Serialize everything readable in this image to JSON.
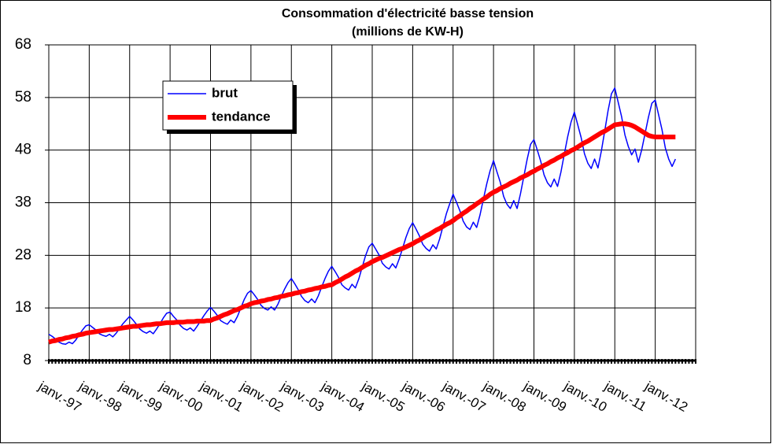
{
  "chart_data": {
    "type": "line",
    "title": "Consommation d'électricité basse tension",
    "subtitle": "(millions de KW-H)",
    "categories": [
      "janv.-97",
      null,
      null,
      null,
      null,
      null,
      null,
      null,
      null,
      null,
      null,
      null,
      "janv.-98",
      null,
      null,
      null,
      null,
      null,
      null,
      null,
      null,
      null,
      null,
      null,
      "janv.-99",
      null,
      null,
      null,
      null,
      null,
      null,
      null,
      null,
      null,
      null,
      null,
      "janv.-00",
      null,
      null,
      null,
      null,
      null,
      null,
      null,
      null,
      null,
      null,
      null,
      "janv.-01",
      null,
      null,
      null,
      null,
      null,
      null,
      null,
      null,
      null,
      null,
      null,
      "janv.-02",
      null,
      null,
      null,
      null,
      null,
      null,
      null,
      null,
      null,
      null,
      null,
      "janv.-03",
      null,
      null,
      null,
      null,
      null,
      null,
      null,
      null,
      null,
      null,
      null,
      "janv.-04",
      null,
      null,
      null,
      null,
      null,
      null,
      null,
      null,
      null,
      null,
      null,
      "janv.-05",
      null,
      null,
      null,
      null,
      null,
      null,
      null,
      null,
      null,
      null,
      null,
      "janv.-06",
      null,
      null,
      null,
      null,
      null,
      null,
      null,
      null,
      null,
      null,
      null,
      "janv.-07",
      null,
      null,
      null,
      null,
      null,
      null,
      null,
      null,
      null,
      null,
      null,
      "janv.-08",
      null,
      null,
      null,
      null,
      null,
      null,
      null,
      null,
      null,
      null,
      null,
      "janv.-09",
      null,
      null,
      null,
      null,
      null,
      null,
      null,
      null,
      null,
      null,
      null,
      "janv.-10",
      null,
      null,
      null,
      null,
      null,
      null,
      null,
      null,
      null,
      null,
      null,
      "janv.-11",
      null,
      null,
      null,
      null,
      null,
      null,
      null,
      null,
      null,
      null,
      null,
      "janv.-12",
      null,
      null,
      null,
      null,
      null,
      null,
      null,
      null,
      null,
      null,
      null
    ],
    "series": [
      {
        "name": "brut",
        "color": "#0000ff",
        "width": 1.5,
        "values": [
          13.0,
          12.6,
          12.1,
          11.5,
          11.2,
          11.1,
          11.5,
          11.2,
          11.9,
          12.9,
          13.8,
          14.6,
          14.8,
          14.3,
          13.8,
          13.1,
          12.8,
          12.6,
          13.0,
          12.5,
          13.2,
          14.1,
          15.0,
          15.7,
          16.4,
          15.7,
          14.9,
          14.0,
          13.5,
          13.2,
          13.6,
          13.1,
          14.0,
          15.0,
          16.1,
          17.0,
          17.2,
          16.4,
          15.7,
          14.7,
          14.1,
          13.8,
          14.2,
          13.6,
          14.5,
          15.5,
          16.5,
          17.4,
          18.1,
          17.4,
          16.6,
          15.6,
          15.2,
          14.9,
          15.7,
          15.2,
          16.4,
          18.0,
          19.6,
          20.8,
          21.3,
          20.5,
          19.6,
          18.5,
          17.9,
          17.6,
          18.2,
          17.6,
          18.7,
          20.2,
          21.6,
          22.8,
          23.6,
          22.6,
          21.5,
          20.2,
          19.4,
          19.0,
          19.7,
          19.0,
          20.3,
          22.0,
          23.6,
          25.0,
          25.9,
          24.9,
          23.8,
          22.4,
          21.8,
          21.4,
          22.5,
          21.8,
          23.5,
          25.7,
          27.9,
          29.6,
          30.3,
          29.2,
          28.1,
          26.5,
          25.8,
          25.4,
          26.4,
          25.6,
          27.3,
          29.3,
          31.4,
          33.1,
          34.2,
          33.0,
          31.7,
          30.1,
          29.3,
          28.8,
          30.0,
          29.2,
          31.1,
          33.5,
          35.9,
          37.8,
          39.6,
          38.1,
          36.5,
          34.5,
          33.4,
          32.9,
          34.3,
          33.3,
          35.7,
          38.7,
          41.6,
          44.1,
          46.0,
          43.9,
          41.9,
          39.2,
          37.7,
          36.9,
          38.4,
          36.9,
          39.7,
          43.0,
          46.3,
          49.1,
          50.0,
          48.0,
          45.9,
          43.3,
          41.8,
          41.0,
          42.5,
          41.1,
          43.8,
          47.2,
          50.5,
          53.3,
          55.2,
          52.8,
          50.4,
          47.3,
          45.5,
          44.5,
          46.3,
          44.6,
          47.8,
          51.6,
          55.5,
          58.7,
          59.8,
          57.1,
          54.4,
          50.9,
          48.7,
          47.1,
          48.2,
          45.7,
          48.1,
          51.2,
          54.3,
          56.9,
          57.5,
          54.7,
          51.9,
          48.4,
          46.3,
          44.9,
          46.3,
          null,
          null,
          null,
          null,
          null
        ]
      },
      {
        "name": "tendance",
        "color": "#ff0000",
        "width": 6,
        "values": [
          11.5,
          11.7,
          11.8,
          12.0,
          12.1,
          12.3,
          12.4,
          12.6,
          12.7,
          12.9,
          13.0,
          13.2,
          13.3,
          13.4,
          13.5,
          13.6,
          13.7,
          13.8,
          13.9,
          13.9,
          14.0,
          14.1,
          14.2,
          14.3,
          14.4,
          14.5,
          14.5,
          14.6,
          14.7,
          14.8,
          14.8,
          14.9,
          15.0,
          15.0,
          15.1,
          15.2,
          15.2,
          15.2,
          15.3,
          15.3,
          15.3,
          15.4,
          15.4,
          15.4,
          15.5,
          15.5,
          15.5,
          15.6,
          15.6,
          15.9,
          16.1,
          16.4,
          16.7,
          16.9,
          17.2,
          17.5,
          17.7,
          18.0,
          18.3,
          18.5,
          18.8,
          19.0,
          19.1,
          19.3,
          19.4,
          19.6,
          19.7,
          19.9,
          20.0,
          20.2,
          20.3,
          20.5,
          20.6,
          20.8,
          20.9,
          21.1,
          21.2,
          21.4,
          21.5,
          21.7,
          21.8,
          22.0,
          22.1,
          22.3,
          22.4,
          22.8,
          23.1,
          23.5,
          23.9,
          24.2,
          24.6,
          25.0,
          25.3,
          25.7,
          26.1,
          26.4,
          26.8,
          27.1,
          27.4,
          27.6,
          27.9,
          28.2,
          28.5,
          28.8,
          29.1,
          29.3,
          29.6,
          29.9,
          30.2,
          30.6,
          30.9,
          31.3,
          31.7,
          32.0,
          32.4,
          32.8,
          33.1,
          33.5,
          33.9,
          34.2,
          34.6,
          35.1,
          35.5,
          36.0,
          36.4,
          36.9,
          37.3,
          37.8,
          38.2,
          38.7,
          39.1,
          39.6,
          40.0,
          40.3,
          40.7,
          41.0,
          41.3,
          41.7,
          42.0,
          42.3,
          42.7,
          43.0,
          43.3,
          43.7,
          44.0,
          44.4,
          44.7,
          45.1,
          45.4,
          45.8,
          46.1,
          46.5,
          46.8,
          47.2,
          47.5,
          47.9,
          48.2,
          48.6,
          49.0,
          49.4,
          49.7,
          50.1,
          50.5,
          50.9,
          51.3,
          51.6,
          52.0,
          52.4,
          52.8,
          52.9,
          53.0,
          53.0,
          52.9,
          52.7,
          52.4,
          52.0,
          51.6,
          51.2,
          50.8,
          50.6,
          50.5,
          50.5,
          50.5,
          50.5,
          50.5,
          50.5,
          50.5,
          null,
          null,
          null,
          null,
          null
        ]
      }
    ],
    "ylim": [
      8,
      68
    ],
    "yticks": [
      8,
      18,
      28,
      38,
      48,
      58,
      68
    ],
    "grid": true,
    "legend": "upper left"
  }
}
